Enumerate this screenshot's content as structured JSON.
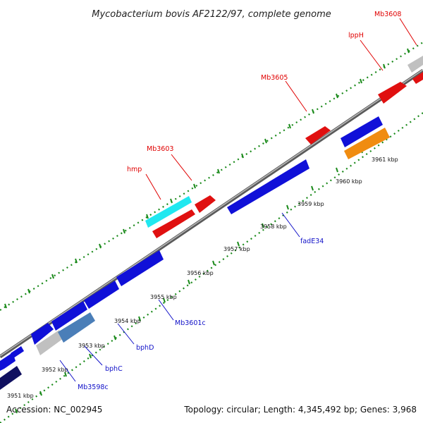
{
  "title": "Mycobacterium bovis AF2122/97, complete genome",
  "footer": {
    "accession": "Accession: NC_002945",
    "summary": "Topology: circular; Length: 4,345,492 bp; Genes: 3,968"
  },
  "ticks": [
    "3951 kbp",
    "3952 kbp",
    "3953 kbp",
    "3954 kbp",
    "3955 kbp",
    "3956 kbp",
    "3957 kbp",
    "3958 kbp",
    "3959 kbp",
    "3960 kbp",
    "3961 kbp"
  ],
  "gene_labels": {
    "hmp": "hmp",
    "mb3603": "Mb3603",
    "mb3605": "Mb3605",
    "lpph": "lppH",
    "mb3608": "Mb3608",
    "fade34": "fadE34",
    "mb3601c": "Mb3601c",
    "bphd": "bphD",
    "bphc": "bphC",
    "mb3598c": "Mb3598c"
  },
  "colors": {
    "forward_gene": "#e01010",
    "reverse_gene": "#1010d8",
    "highlight_cyan": "#20e8f0",
    "highlight_steel": "#4a7eb8",
    "highlight_orange": "#f08c10",
    "navy_gene": "#101060",
    "grey_gene": "#c0c0c0",
    "backbone": "#888888",
    "ruler": "#1a8a1a"
  }
}
